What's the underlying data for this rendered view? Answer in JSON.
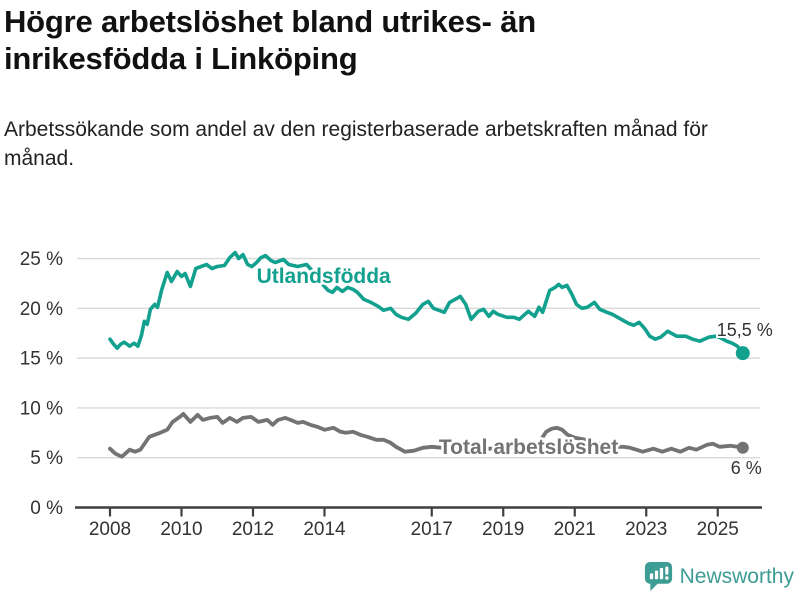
{
  "title": "Högre arbetslöshet bland utrikes- än inrikesfödda i Linköping",
  "subtitle": "Arbetssökande som andel av den registerbaserade arbetskraften månad för månad.",
  "branding": {
    "logo_text": "Newsworthy"
  },
  "colors": {
    "series_foreign": "#12a08f",
    "series_total": "#737373",
    "grid": "#d9d9d9",
    "axis": "#3f3f3f",
    "tick_text": "#333333",
    "annotation_text": "#333333",
    "logo_teal": "#3d9c94"
  },
  "chart_data": {
    "type": "line",
    "title": "Högre arbetslöshet bland utrikes- än inrikesfödda i Linköping",
    "subtitle": "Arbetssökande som andel av den registerbaserade arbetskraften månad för månad.",
    "x_axis": {
      "tick_labels": [
        "2008",
        "2010",
        "2012",
        "2014",
        "2017",
        "2019",
        "2021",
        "2023",
        "2025"
      ],
      "tick_values": [
        2008,
        2010,
        2012,
        2014,
        2017,
        2019,
        2021,
        2023,
        2025
      ],
      "domain": [
        2008.0,
        2025.7
      ]
    },
    "y_axis": {
      "tick_labels": [
        "0 %",
        "5 %",
        "10 %",
        "15 %",
        "20 %",
        "25 %"
      ],
      "tick_values": [
        0,
        5,
        10,
        15,
        20,
        25
      ],
      "range": [
        0,
        26
      ],
      "unit": "%"
    },
    "grid": "horizontal",
    "legend": "inline-labels",
    "series": [
      {
        "name": "Utlandsfödda",
        "end_label": "15,5 %",
        "end_value": 15.5,
        "points": [
          [
            2008.0,
            16.9
          ],
          [
            2008.1,
            16.4
          ],
          [
            2008.2,
            16.0
          ],
          [
            2008.3,
            16.4
          ],
          [
            2008.4,
            16.6
          ],
          [
            2008.55,
            16.2
          ],
          [
            2008.67,
            16.5
          ],
          [
            2008.78,
            16.2
          ],
          [
            2008.88,
            17.3
          ],
          [
            2008.96,
            18.7
          ],
          [
            2009.04,
            18.4
          ],
          [
            2009.13,
            19.9
          ],
          [
            2009.25,
            20.4
          ],
          [
            2009.33,
            20.1
          ],
          [
            2009.45,
            21.9
          ],
          [
            2009.6,
            23.6
          ],
          [
            2009.72,
            22.7
          ],
          [
            2009.88,
            23.7
          ],
          [
            2010.0,
            23.2
          ],
          [
            2010.1,
            23.5
          ],
          [
            2010.25,
            22.2
          ],
          [
            2010.4,
            24.0
          ],
          [
            2010.55,
            24.2
          ],
          [
            2010.7,
            24.4
          ],
          [
            2010.85,
            24.0
          ],
          [
            2011.0,
            24.2
          ],
          [
            2011.2,
            24.3
          ],
          [
            2011.35,
            25.1
          ],
          [
            2011.5,
            25.6
          ],
          [
            2011.6,
            25.0
          ],
          [
            2011.72,
            25.4
          ],
          [
            2011.85,
            24.4
          ],
          [
            2011.97,
            24.2
          ],
          [
            2012.1,
            24.6
          ],
          [
            2012.22,
            25.1
          ],
          [
            2012.35,
            25.3
          ],
          [
            2012.5,
            24.8
          ],
          [
            2012.62,
            24.6
          ],
          [
            2012.85,
            24.9
          ],
          [
            2013.0,
            24.4
          ],
          [
            2013.25,
            24.2
          ],
          [
            2013.5,
            24.4
          ],
          [
            2013.75,
            23.4
          ],
          [
            2013.95,
            22.4
          ],
          [
            2014.1,
            21.8
          ],
          [
            2014.22,
            21.6
          ],
          [
            2014.35,
            22.1
          ],
          [
            2014.5,
            21.7
          ],
          [
            2014.65,
            22.1
          ],
          [
            2014.8,
            21.9
          ],
          [
            2014.92,
            21.6
          ],
          [
            2015.1,
            20.9
          ],
          [
            2015.3,
            20.6
          ],
          [
            2015.5,
            20.2
          ],
          [
            2015.65,
            19.8
          ],
          [
            2015.85,
            20.0
          ],
          [
            2016.0,
            19.4
          ],
          [
            2016.15,
            19.1
          ],
          [
            2016.35,
            18.9
          ],
          [
            2016.55,
            19.5
          ],
          [
            2016.75,
            20.4
          ],
          [
            2016.9,
            20.7
          ],
          [
            2017.05,
            20.0
          ],
          [
            2017.2,
            19.8
          ],
          [
            2017.35,
            19.6
          ],
          [
            2017.5,
            20.6
          ],
          [
            2017.65,
            20.9
          ],
          [
            2017.8,
            21.2
          ],
          [
            2017.95,
            20.4
          ],
          [
            2018.1,
            18.9
          ],
          [
            2018.3,
            19.7
          ],
          [
            2018.45,
            19.9
          ],
          [
            2018.6,
            19.2
          ],
          [
            2018.72,
            19.7
          ],
          [
            2018.85,
            19.4
          ],
          [
            2019.1,
            19.1
          ],
          [
            2019.3,
            19.1
          ],
          [
            2019.45,
            18.9
          ],
          [
            2019.7,
            19.7
          ],
          [
            2019.88,
            19.2
          ],
          [
            2020.0,
            20.1
          ],
          [
            2020.1,
            19.6
          ],
          [
            2020.3,
            21.8
          ],
          [
            2020.45,
            22.1
          ],
          [
            2020.55,
            22.4
          ],
          [
            2020.65,
            22.1
          ],
          [
            2020.78,
            22.3
          ],
          [
            2020.92,
            21.4
          ],
          [
            2021.05,
            20.4
          ],
          [
            2021.2,
            20.0
          ],
          [
            2021.35,
            20.1
          ],
          [
            2021.55,
            20.6
          ],
          [
            2021.7,
            19.9
          ],
          [
            2021.9,
            19.6
          ],
          [
            2022.05,
            19.4
          ],
          [
            2022.3,
            18.9
          ],
          [
            2022.5,
            18.5
          ],
          [
            2022.65,
            18.3
          ],
          [
            2022.8,
            18.6
          ],
          [
            2022.95,
            18.0
          ],
          [
            2023.1,
            17.2
          ],
          [
            2023.25,
            16.9
          ],
          [
            2023.4,
            17.1
          ],
          [
            2023.6,
            17.7
          ],
          [
            2023.85,
            17.2
          ],
          [
            2024.1,
            17.2
          ],
          [
            2024.3,
            16.9
          ],
          [
            2024.5,
            16.7
          ],
          [
            2024.75,
            17.1
          ],
          [
            2024.95,
            17.2
          ],
          [
            2025.1,
            17.0
          ],
          [
            2025.25,
            16.7
          ],
          [
            2025.4,
            16.5
          ],
          [
            2025.55,
            16.2
          ],
          [
            2025.7,
            15.5
          ]
        ]
      },
      {
        "name": "Total arbetslöshet",
        "end_label": "6 %",
        "end_value": 6,
        "points": [
          [
            2008.0,
            5.9
          ],
          [
            2008.15,
            5.4
          ],
          [
            2008.33,
            5.1
          ],
          [
            2008.55,
            5.8
          ],
          [
            2008.7,
            5.6
          ],
          [
            2008.85,
            5.8
          ],
          [
            2009.1,
            7.1
          ],
          [
            2009.25,
            7.3
          ],
          [
            2009.4,
            7.5
          ],
          [
            2009.6,
            7.8
          ],
          [
            2009.75,
            8.6
          ],
          [
            2009.95,
            9.1
          ],
          [
            2010.05,
            9.4
          ],
          [
            2010.25,
            8.6
          ],
          [
            2010.45,
            9.3
          ],
          [
            2010.6,
            8.8
          ],
          [
            2010.8,
            9.0
          ],
          [
            2011.0,
            9.1
          ],
          [
            2011.15,
            8.5
          ],
          [
            2011.35,
            9.0
          ],
          [
            2011.55,
            8.6
          ],
          [
            2011.72,
            9.0
          ],
          [
            2011.95,
            9.1
          ],
          [
            2012.15,
            8.6
          ],
          [
            2012.4,
            8.8
          ],
          [
            2012.55,
            8.3
          ],
          [
            2012.7,
            8.8
          ],
          [
            2012.9,
            9.0
          ],
          [
            2013.05,
            8.8
          ],
          [
            2013.25,
            8.5
          ],
          [
            2013.4,
            8.6
          ],
          [
            2013.6,
            8.3
          ],
          [
            2013.8,
            8.1
          ],
          [
            2014.0,
            7.8
          ],
          [
            2014.25,
            8.0
          ],
          [
            2014.45,
            7.6
          ],
          [
            2014.6,
            7.5
          ],
          [
            2014.8,
            7.6
          ],
          [
            2015.0,
            7.3
          ],
          [
            2015.2,
            7.1
          ],
          [
            2015.45,
            6.8
          ],
          [
            2015.65,
            6.8
          ],
          [
            2015.85,
            6.5
          ],
          [
            2016.0,
            6.1
          ],
          [
            2016.25,
            5.6
          ],
          [
            2016.5,
            5.7
          ],
          [
            2016.75,
            6.0
          ],
          [
            2017.0,
            6.1
          ],
          [
            2017.3,
            6.0
          ],
          [
            2017.6,
            5.9
          ],
          [
            2018.0,
            6.0
          ],
          [
            2018.4,
            5.9
          ],
          [
            2018.8,
            5.9
          ],
          [
            2019.2,
            6.0
          ],
          [
            2019.6,
            6.1
          ],
          [
            2019.9,
            6.3
          ],
          [
            2020.05,
            6.8
          ],
          [
            2020.2,
            7.6
          ],
          [
            2020.35,
            7.9
          ],
          [
            2020.5,
            8.0
          ],
          [
            2020.65,
            7.8
          ],
          [
            2020.8,
            7.3
          ],
          [
            2021.0,
            7.0
          ],
          [
            2021.3,
            6.8
          ],
          [
            2021.6,
            6.5
          ],
          [
            2021.9,
            6.2
          ],
          [
            2022.1,
            6.1
          ],
          [
            2022.35,
            6.1
          ],
          [
            2022.55,
            6.0
          ],
          [
            2022.9,
            5.6
          ],
          [
            2023.2,
            5.9
          ],
          [
            2023.45,
            5.6
          ],
          [
            2023.7,
            5.9
          ],
          [
            2023.95,
            5.6
          ],
          [
            2024.2,
            6.0
          ],
          [
            2024.4,
            5.8
          ],
          [
            2024.7,
            6.3
          ],
          [
            2024.87,
            6.4
          ],
          [
            2025.05,
            6.1
          ],
          [
            2025.35,
            6.2
          ],
          [
            2025.55,
            6.1
          ],
          [
            2025.7,
            6.0
          ]
        ]
      }
    ]
  }
}
